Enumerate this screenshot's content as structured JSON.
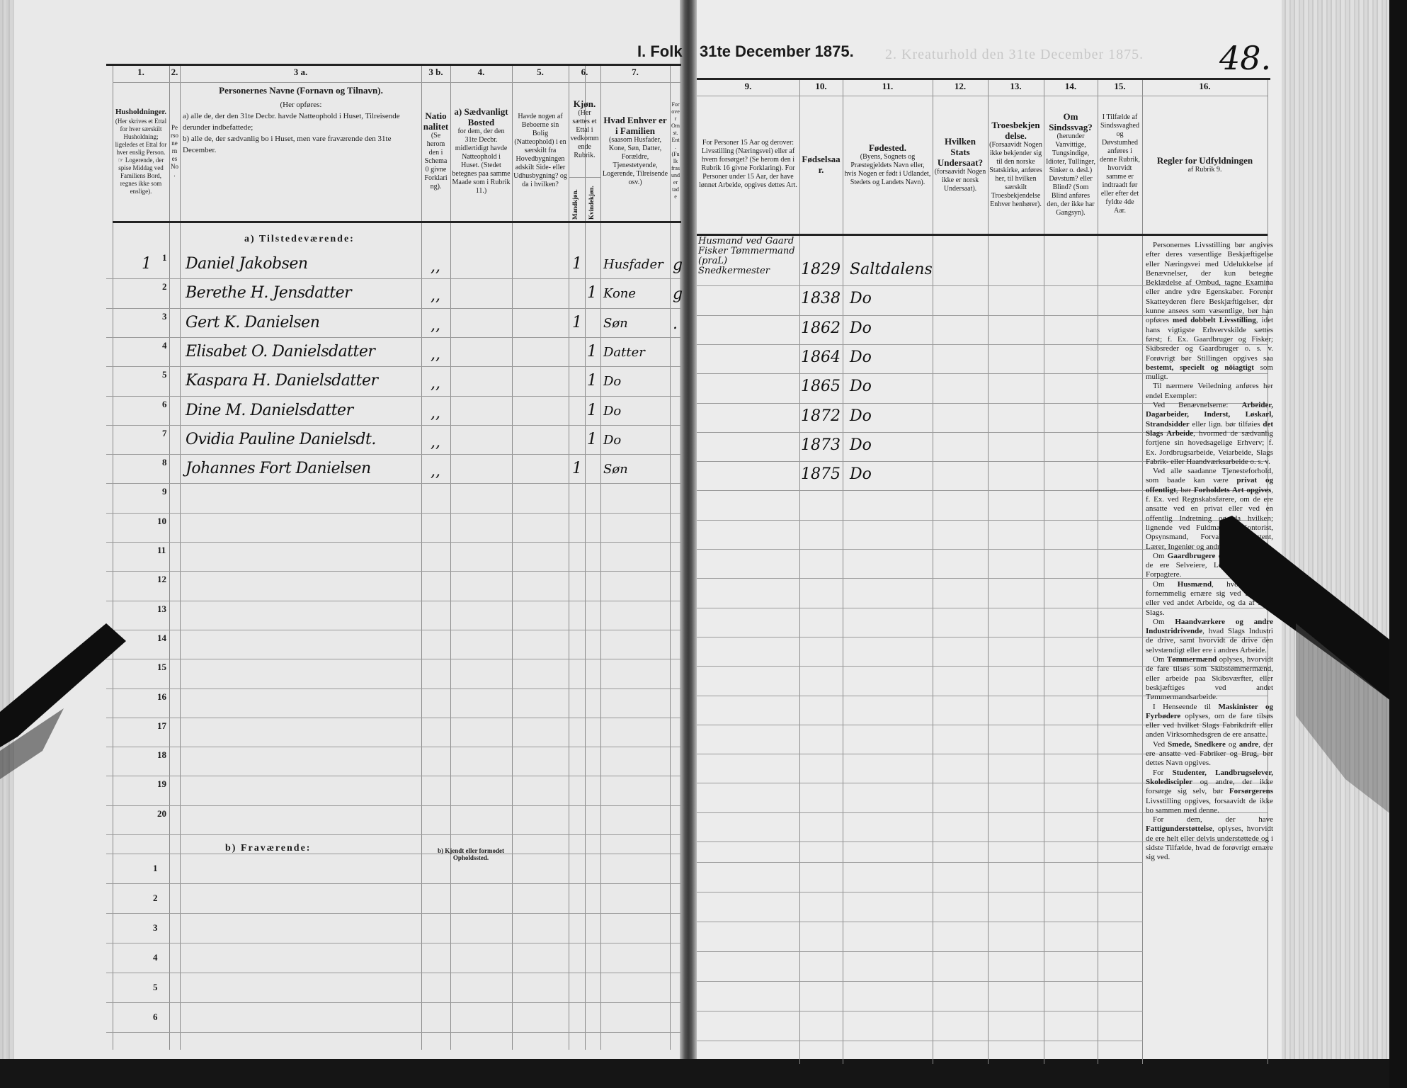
{
  "page": {
    "title_left": "I. Folk",
    "title_right": "31te December 1875.",
    "bleed_title": "2. Kreaturhold den 31te December 1875.",
    "page_number": "48."
  },
  "header": {
    "columns": [
      {
        "number": "1.",
        "title": "Husholdninger.",
        "text": "(Her skrives et Ettal for hver særskilt Husholdning; ligeledes et Ettal for hver enslig Person. ☞ Logerende, der spise Middag ved Familiens Bord, regnes ikke som enslige)."
      },
      {
        "number": "2.",
        "title": "",
        "text": "Personernes No."
      },
      {
        "number": "3 a.",
        "title": "Personernes Navne (Fornavn og Tilnavn).",
        "text": ""
      },
      {
        "number": "3 b.",
        "title": "Nationalitet",
        "text": "(Se herom den i Schema 0 givne Forklaring)."
      },
      {
        "number": "4.",
        "title": "a) Sædvanligt Bosted",
        "text": "for dem, der den 31te Decbr. midlertidigt havde Natteophold i Huset. (Stedet betegnes paa samme Maade som i Rubrik 11.)"
      },
      {
        "number": "5.",
        "title": "",
        "text": "Havde nogen af Beboerne sin Bolig (Natteophold) i en særskilt fra Hovedbygningen adskilt Side- eller Udhusbygning? og da i hvilken?"
      },
      {
        "number": "6.",
        "title": "Kjøn.",
        "text": "(Her sættes et Ettal i vedkommende Rubrik."
      },
      {
        "number": "7.",
        "title": "Hvad Enhver er i Familien",
        "text": "(saasom Husfader, Kone, Søn, Datter, Forældre, Tjenestetyende, Logerende, Tilreisende osv.)"
      },
      {
        "number": "",
        "title": "",
        "text": "For over Omst. Ent. (Fulk fras under tade"
      },
      {
        "number": "9.",
        "title": "",
        "text": "For Personer 15 Aar og derover: Livsstilling (Næringsvei) eller af hvem forsørget? (Se herom den i Rubrik 16 givne Forklaring). For Personer under 15 Aar, der have lønnet Arbeide, opgives dettes Art."
      },
      {
        "number": "10.",
        "title": "Fødselsaar.",
        "text": ""
      },
      {
        "number": "11.",
        "title": "Fødested.",
        "text": "(Byens, Sognets og Præstegjeldets Navn eller, hvis Nogen er født i Udlandet, Stedets og Landets Navn)."
      },
      {
        "number": "12.",
        "title": "Hvilken Stats Undersaat?",
        "text": "(forsaavidt Nogen ikke er norsk Undersaat)."
      },
      {
        "number": "13.",
        "title": "Troesbekjendelse.",
        "text": "(Forsaavidt Nogen ikke bekjender sig til den norske Statskirke, anføres her, til hvilken særskilt Troesbekjendelse Enhver henhører)."
      },
      {
        "number": "14.",
        "title": "Om Sindssvag?",
        "text": "(herunder Vanvittige, Tungsindige, Idioter, Tullinger, Sinker o. desl.) Døvstum? eller Blind? (Som Blind anføres den, der ikke har Gangsyn)."
      },
      {
        "number": "15.",
        "title": "",
        "text": "I Tilfælde af Sindssvaghed og Døvstumhed anføres i denne Rubrik, hvorvidt samme er indtraadt før eller efter det fyldte 4de Aar."
      },
      {
        "number": "16.",
        "title": "Regler for Udfyldningen",
        "text": "af Rubrik 9."
      }
    ],
    "col3a_lines": [
      "(Her opføres:",
      "a) alle de, der den 31te Decbr. havde Natteophold i Huset, Tilreisende derunder indbefattede;",
      "b) alle de, der sædvanlig bo i Huset, men vare fraværende den 31te December."
    ],
    "sex_male": "Mandkjøn.",
    "sex_female": "Kvindekjøn."
  },
  "section_present": "a) Tilstedeværende:",
  "section_absent": "b) Fraværende:",
  "absent_location_header": "b) Kjendt eller formodet Opholdssted.",
  "row_numbers_present": [
    "1",
    "2",
    "3",
    "4",
    "5",
    "6",
    "7",
    "8",
    "9",
    "10",
    "11",
    "12",
    "13",
    "14",
    "15",
    "16",
    "17",
    "18",
    "19",
    "20"
  ],
  "row_numbers_absent": [
    "1",
    "2",
    "3",
    "4",
    "5",
    "6"
  ],
  "residents": [
    {
      "household": "1",
      "name": "Daniel Jakobsen",
      "nationality": ",,",
      "male": "1",
      "female": "",
      "family_role": "Husfader",
      "civil": "g",
      "occupation": [
        "Husmand ved Gaard",
        "Fisker Tømmermand (praL)",
        "Snedkermester"
      ],
      "birth_year": "1829",
      "birthplace": "Saltdalens"
    },
    {
      "household": "",
      "name": "Berethe H. Jensdatter",
      "nationality": ",,",
      "male": "",
      "female": "1",
      "family_role": "Kone",
      "civil": "g",
      "occupation": [],
      "birth_year": "1838",
      "birthplace": "Do"
    },
    {
      "household": "",
      "name": "Gert K. Danielsen",
      "nationality": ",,",
      "male": "1",
      "female": "",
      "family_role": "Søn",
      "civil": ".",
      "occupation": [],
      "birth_year": "1862",
      "birthplace": "Do"
    },
    {
      "household": "",
      "name": "Elisabet O. Danielsdatter",
      "nationality": ",,",
      "male": "",
      "female": "1",
      "family_role": "Datter",
      "civil": "",
      "occupation": [],
      "birth_year": "1864",
      "birthplace": "Do"
    },
    {
      "household": "",
      "name": "Kaspara H. Danielsdatter",
      "nationality": ",,",
      "male": "",
      "female": "1",
      "family_role": "Do",
      "civil": "",
      "occupation": [],
      "birth_year": "1865",
      "birthplace": "Do"
    },
    {
      "household": "",
      "name": "Dine M. Danielsdatter",
      "nationality": ",,",
      "male": "",
      "female": "1",
      "family_role": "Do",
      "civil": "",
      "occupation": [],
      "birth_year": "1872",
      "birthplace": "Do"
    },
    {
      "household": "",
      "name": "Ovidia Pauline Danielsdt.",
      "nationality": ",,",
      "male": "",
      "female": "1",
      "family_role": "Do",
      "civil": "",
      "occupation": [],
      "birth_year": "1873",
      "birthplace": "Do"
    },
    {
      "household": "",
      "name": "Johannes Fort Danielsen",
      "nationality": ",,",
      "male": "1",
      "female": "",
      "family_role": "Søn",
      "civil": "",
      "occupation": [],
      "birth_year": "1875",
      "birthplace": "Do"
    }
  ],
  "rules": {
    "paragraphs": [
      [
        [
          "Personernes Livsstilling bør angives efter deres væsentlige Beskjæftigelse eller Næringsvei med Udelukkelse af Benævnelser, der kun betegne Beklædelse af Ombud, tagne Examina eller andre ydre Egenskaber. Forener Skatteyderen flere Beskjæftigelser, der kunne ansees som væsentlige, bør han opføres ",
          false
        ],
        [
          "med dobbelt Livsstilling",
          true
        ],
        [
          ", idet hans vigtigste Erhvervskilde sættes først; f. Ex. Gaardbruger og Fisker; Skibsreder og Gaardbruger o. s. v. Forøvrigt bør Stillingen opgives saa ",
          false
        ],
        [
          "bestemt, specielt og nöiagtigt",
          true
        ],
        [
          " som muligt.",
          false
        ]
      ],
      [
        [
          "Til nærmere Veiledning anføres her endel Exempler:",
          false
        ]
      ],
      [
        [
          "Ved Benævnelserne: ",
          false
        ],
        [
          "Arbeider, Dagarbeider, Inderst, Løskarl, Strandsidder",
          true
        ],
        [
          " eller lign. bør tilføies ",
          false
        ],
        [
          "det Slags Arbeide",
          true
        ],
        [
          ", hvormed de sædvanlig fortjene sin hovedsagelige Erhverv; f. Ex. Jordbrugsarbeide, Veiarbeide, Slags Fabrik- eller Haandværksarbeide o. s. v.",
          false
        ]
      ],
      [
        [
          "Ved alle saadanne Tjenesteforhold, som baade kan være ",
          false
        ],
        [
          "privat og offentligt",
          true
        ],
        [
          ", bør ",
          false
        ],
        [
          "Forholdets Art opgives",
          true
        ],
        [
          ", f. Ex. ved Regnskabsførere, om de ere ansatte ved en privat eller ved en offentlig Indretning og da hvilken; lignende ved Fuldmægtig, Kontorist, Opsynsmand, Forvalter, Assistent, Lærer, Ingeniør og andre.",
          false
        ]
      ],
      [
        [
          "Om ",
          false
        ],
        [
          "Gaardbrugere",
          true
        ],
        [
          " oplyses, hvorvidt de ere Selveiere, Leilændinge eller Forpagtere.",
          false
        ]
      ],
      [
        [
          "Om ",
          false
        ],
        [
          "Husmænd",
          true
        ],
        [
          ", hvorvidt de fornemmelig ernære sig ved Jordbrug eller ved andet Arbeide, og da af hvad Slags.",
          false
        ]
      ],
      [
        [
          "Om ",
          false
        ],
        [
          "Haandværkere og andre Industridrivende",
          true
        ],
        [
          ", hvad Slags Industri de drive, samt hvorvidt de drive den selvstændigt eller ere i andres Arbeide.",
          false
        ]
      ],
      [
        [
          "Om ",
          false
        ],
        [
          "Tømmermænd",
          true
        ],
        [
          " oplyses, hvorvidt de fare tilsøs som Skibstømmermænd, eller arbeide paa Skibsværfter, eller beskjæftiges ved andet Tømmermandsarbeide.",
          false
        ]
      ],
      [
        [
          "I Henseende til ",
          false
        ],
        [
          "Maskinister og Fyrbødere",
          true
        ],
        [
          " oplyses, om de fare tilsøs eller ved hvilket Slags Fabrikdrift eller anden Virksomhedsgren de ere ansatte.",
          false
        ]
      ],
      [
        [
          "Ved ",
          false
        ],
        [
          "Smede, Snedkere",
          true
        ],
        [
          " og ",
          false
        ],
        [
          "andre",
          true
        ],
        [
          ", der ere ansatte ved Fabriker og Brug, bør dettes Navn opgives.",
          false
        ]
      ],
      [
        [
          "For ",
          false
        ],
        [
          "Studenter, Landbrugselever, Skolediscipler",
          true
        ],
        [
          " og andre, der ikke forsørge sig selv, bør ",
          false
        ],
        [
          "Forsørgerens",
          true
        ],
        [
          " Livsstilling opgives, forsaavidt de ikke bo sammen med denne.",
          false
        ]
      ],
      [
        [
          "For dem, der have ",
          false
        ],
        [
          "Fattigunderstøttelse",
          true
        ],
        [
          ", oplyses, hvorvidt de ere helt eller delvis understøttede og i sidste Tilfælde, hvad de forøvrigt ernære sig ved.",
          false
        ]
      ]
    ]
  },
  "colors": {
    "paper": "#e9e9e9",
    "ink": "#111111",
    "tape": "#0e0e0e"
  }
}
